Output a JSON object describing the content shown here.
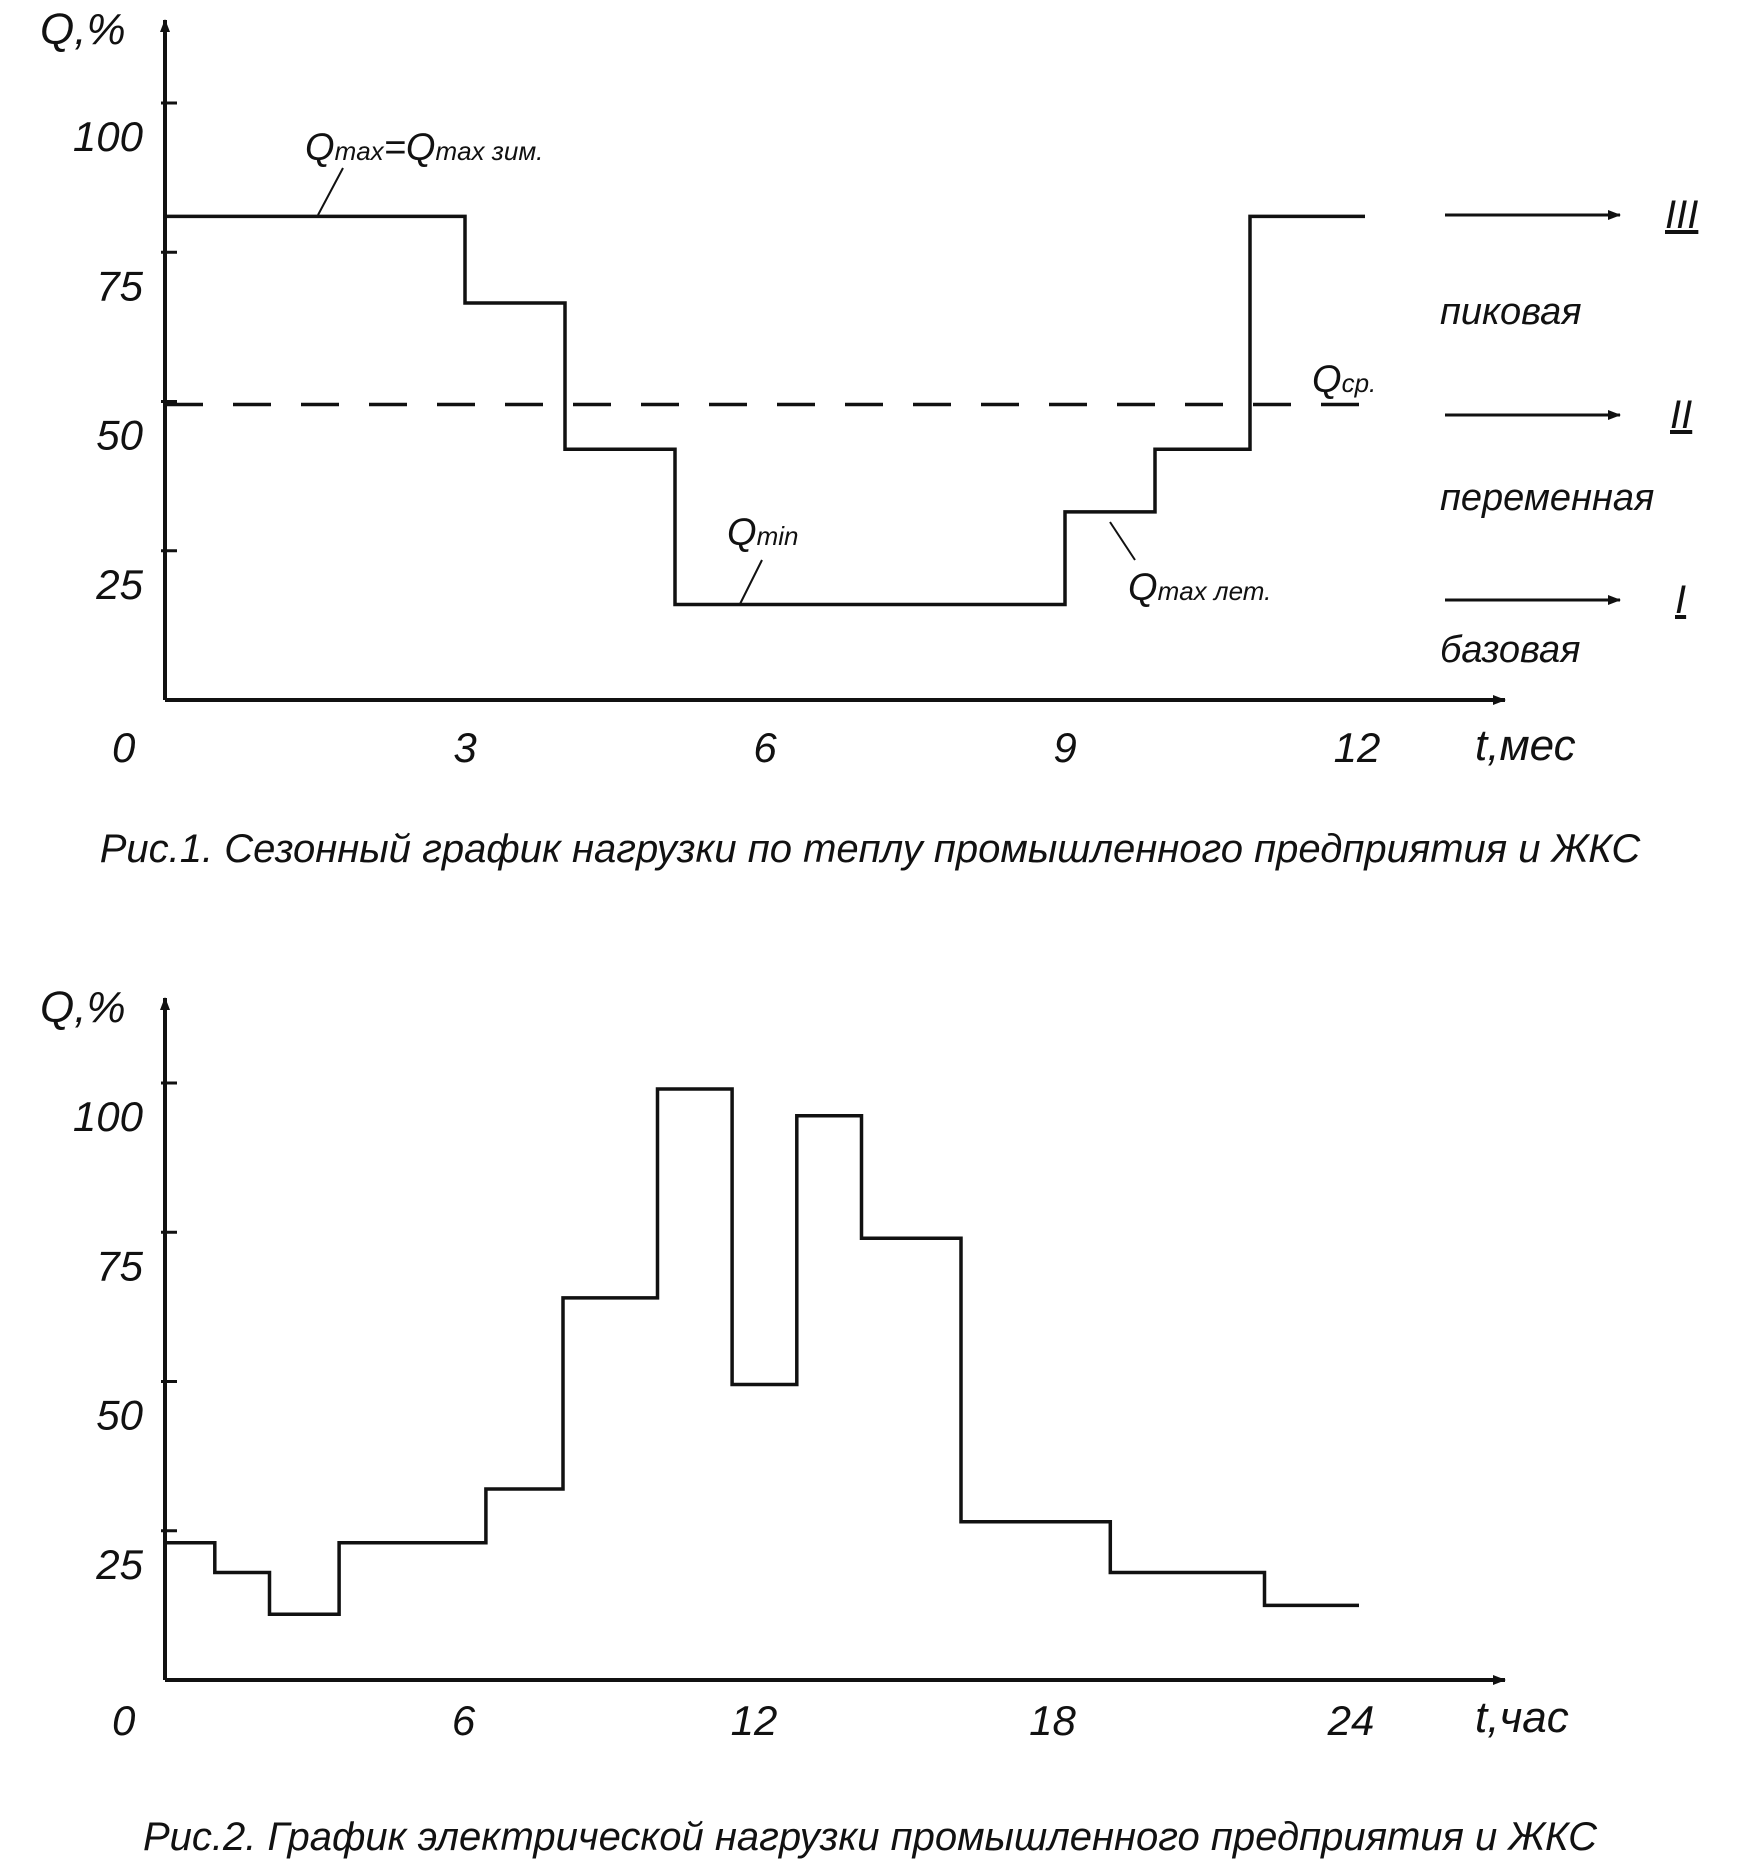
{
  "chart_data": [
    {
      "type": "line",
      "step": true,
      "title": "",
      "caption": "Рис.1. Сезонный график нагрузки по теплу промышленного предприятия и ЖКС",
      "xlabel": "t,мес",
      "ylabel": "Q,%",
      "xlim": [
        0,
        13.2
      ],
      "ylim": [
        0,
        120
      ],
      "origin_label": "0",
      "x_ticks": [
        "3",
        "6",
        "9",
        "12"
      ],
      "y_ticks": [
        "25",
        "50",
        "75",
        "100"
      ],
      "series": [
        {
          "style": "solid",
          "x": [
            0,
            3,
            3,
            4,
            4,
            5.1,
            5.1,
            9,
            9,
            9.9,
            9.9,
            10.85,
            10.85,
            12
          ],
          "y": [
            81,
            81,
            66.5,
            66.5,
            42,
            42,
            16,
            16,
            31.5,
            31.5,
            42,
            42,
            81,
            81
          ]
        },
        {
          "style": "dashed",
          "x": [
            0,
            12
          ],
          "y": [
            49.5,
            49.5
          ]
        }
      ],
      "annotations": {
        "qmax_main": "Q",
        "qmax_sub": "max",
        "qmax_eq": "=Q",
        "qmax_sub2": "max зим.",
        "qmin_main": "Q",
        "qmin_sub": "min",
        "qmaxlet_main": "Q",
        "qmaxlet_sub": "max лет.",
        "qsr_main": "Q",
        "qsr_sub": "ср."
      },
      "bands": {
        "peak_label": "пиковая",
        "variable_label": "переменная",
        "base_label": "базовая",
        "roman_3": "III",
        "roman_2": "II",
        "roman_1": "I"
      }
    },
    {
      "type": "line",
      "step": true,
      "title": "",
      "caption": "Рис.2. График электрической нагрузки промышленного предприятия и ЖКС",
      "xlabel": "t,час",
      "ylabel": "Q,%",
      "xlim": [
        0,
        26.4
      ],
      "ylim": [
        0,
        120
      ],
      "origin_label": "0",
      "x_ticks": [
        "6",
        "12",
        "18",
        "24"
      ],
      "y_ticks": [
        "25",
        "50",
        "75",
        "100"
      ],
      "series": [
        {
          "style": "solid",
          "x": [
            0,
            1,
            1,
            2.1,
            2.1,
            3.5,
            3.5,
            6.45,
            6.45,
            8,
            8,
            9.9,
            9.9,
            11.4,
            11.4,
            12.7,
            12.7,
            14,
            14,
            16,
            16,
            19,
            19,
            22.1,
            22.1,
            24
          ],
          "y": [
            23,
            23,
            18,
            18,
            11,
            11,
            23,
            23,
            32,
            32,
            64,
            64,
            99,
            99,
            49.5,
            49.5,
            94.5,
            94.5,
            74,
            74,
            26.5,
            26.5,
            18,
            18,
            12.5,
            12.5
          ]
        }
      ]
    }
  ]
}
